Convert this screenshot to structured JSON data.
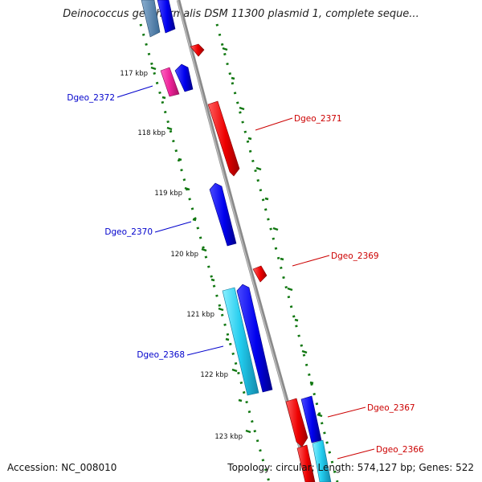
{
  "title": "Deinococcus geothermalis DSM 11300 plasmid 1, complete seque...",
  "accession": "Accession: NC_008010",
  "topology": "Topology: circular; Length: 574,127 bp; Genes: 522",
  "colors": {
    "forward_gene": "#0000ff",
    "reverse_gene": "#ff0000",
    "cyan_gene": "#22ccee",
    "magenta_gene": "#ee2299",
    "backbone": "#8a8a8a",
    "dotted_track": "#117711",
    "forward_label": "#0000cc",
    "reverse_label": "#cc0000"
  },
  "ticks": [
    {
      "label": "117 kbp"
    },
    {
      "label": "118 kbp"
    },
    {
      "label": "119 kbp"
    },
    {
      "label": "120 kbp"
    },
    {
      "label": "121 kbp"
    },
    {
      "label": "122 kbp"
    },
    {
      "label": "123 kbp"
    }
  ],
  "gene_labels": [
    {
      "text": "Dgeo_2372",
      "strand": "forward"
    },
    {
      "text": "Dgeo_2371",
      "strand": "reverse"
    },
    {
      "text": "Dgeo_2370",
      "strand": "forward"
    },
    {
      "text": "Dgeo_2369",
      "strand": "reverse"
    },
    {
      "text": "Dgeo_2368",
      "strand": "forward"
    },
    {
      "text": "Dgeo_2367",
      "strand": "reverse"
    },
    {
      "text": "Dgeo_2366",
      "strand": "reverse"
    }
  ]
}
